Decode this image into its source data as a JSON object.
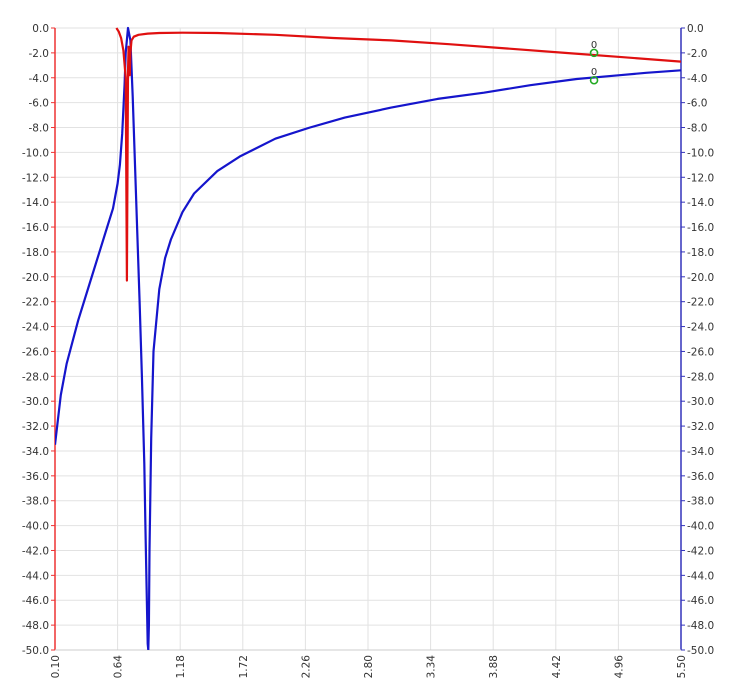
{
  "chart_data": {
    "type": "line",
    "title": "",
    "xlabel": "",
    "ylabel": "",
    "xlim": [
      0.1,
      5.5
    ],
    "ylim_left": [
      -50.0,
      0.0
    ],
    "ylim_right": [
      -50.0,
      0.0
    ],
    "x_ticks": [
      "0.10",
      "0.64",
      "1.18",
      "1.72",
      "2.26",
      "2.80",
      "3.34",
      "3.88",
      "4.42",
      "4.96",
      "5.50"
    ],
    "y_ticks_left": [
      "0.0",
      "-2.0",
      "-4.0",
      "-6.0",
      "-8.0",
      "-10.0",
      "-12.0",
      "-14.0",
      "-16.0",
      "-18.0",
      "-20.0",
      "-22.0",
      "-24.0",
      "-26.0",
      "-28.0",
      "-30.0",
      "-32.0",
      "-34.0",
      "-36.0",
      "-38.0",
      "-40.0",
      "-42.0",
      "-44.0",
      "-46.0",
      "-48.0",
      "-50.0"
    ],
    "y_ticks_right": [
      "0.0",
      "-2.0",
      "-4.0",
      "-6.0",
      "-8.0",
      "-10.0",
      "-12.0",
      "-14.0",
      "-16.0",
      "-18.0",
      "-20.0",
      "-22.0",
      "-24.0",
      "-26.0",
      "-28.0",
      "-30.0",
      "-32.0",
      "-34.0",
      "-36.0",
      "-38.0",
      "-40.0",
      "-42.0",
      "-44.0",
      "-46.0",
      "-48.0",
      "-50.0"
    ],
    "grid": true,
    "left_axis_color": "#ee3333",
    "right_axis_color": "#3333bb",
    "series": [
      {
        "color": "#e01010",
        "x": [
          0.63,
          0.65,
          0.67,
          0.69,
          0.71,
          0.72,
          0.73,
          0.735,
          0.74,
          0.745,
          0.75,
          0.76,
          0.78,
          0.82,
          0.9,
          1.0,
          1.2,
          1.5,
          2.0,
          2.5,
          3.0,
          3.5,
          4.0,
          4.5,
          5.0,
          5.5
        ],
        "y": [
          0.0,
          -0.3,
          -0.8,
          -1.8,
          -4.0,
          -20.3,
          -3.5,
          -1.5,
          -1.8,
          -3.8,
          -2.0,
          -1.0,
          -0.7,
          -0.55,
          -0.45,
          -0.4,
          -0.38,
          -0.4,
          -0.55,
          -0.8,
          -1.0,
          -1.3,
          -1.65,
          -2.0,
          -2.35,
          -2.7
        ]
      },
      {
        "color": "#1515cc",
        "x": [
          0.1,
          0.15,
          0.2,
          0.3,
          0.4,
          0.5,
          0.55,
          0.6,
          0.64,
          0.66,
          0.68,
          0.7,
          0.71,
          0.73,
          0.75,
          0.77,
          0.79,
          0.81,
          0.83,
          0.85,
          0.87,
          0.88,
          0.89,
          0.9,
          0.905,
          0.91,
          0.915,
          0.93,
          0.95,
          1.0,
          1.05,
          1.1,
          1.2,
          1.3,
          1.5,
          1.7,
          2.0,
          2.3,
          2.6,
          3.0,
          3.4,
          3.8,
          4.2,
          4.6,
          4.96,
          5.2,
          5.5
        ],
        "y": [
          -33.5,
          -29.5,
          -27.0,
          -23.5,
          -20.5,
          -17.5,
          -16.0,
          -14.5,
          -12.5,
          -11.0,
          -8.5,
          -4.5,
          -2.0,
          0.0,
          -1.0,
          -5.5,
          -11.0,
          -16.5,
          -22.0,
          -28.0,
          -35.0,
          -40.0,
          -45.0,
          -49.5,
          -50.0,
          -48.0,
          -42.0,
          -33.0,
          -26.0,
          -21.0,
          -18.5,
          -17.0,
          -14.8,
          -13.3,
          -11.5,
          -10.3,
          -8.9,
          -8.0,
          -7.2,
          -6.4,
          -5.7,
          -5.2,
          -4.6,
          -4.1,
          -3.8,
          -3.6,
          -3.4
        ]
      }
    ],
    "markers": [
      {
        "label": "0",
        "x": 4.75,
        "y": -2.0,
        "color": "#22aa22"
      },
      {
        "label": "0",
        "x": 4.75,
        "y": -4.2,
        "color": "#22aa22"
      }
    ]
  }
}
